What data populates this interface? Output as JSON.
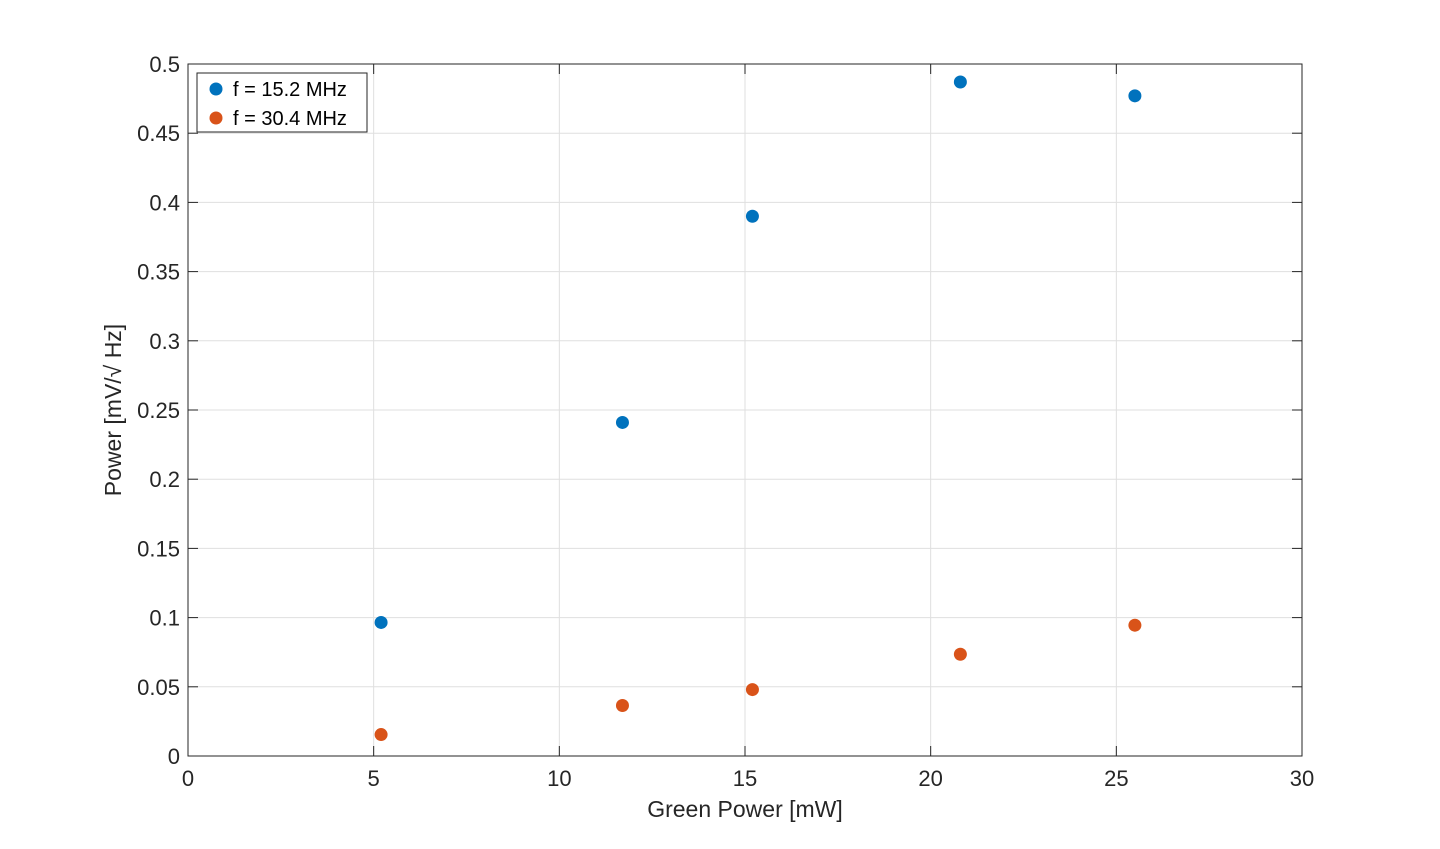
{
  "chart_data": {
    "type": "scatter",
    "title": "",
    "xlabel": "Green Power [mW]",
    "ylabel": "Power [mV/√ Hz]",
    "xlim": [
      0,
      30
    ],
    "ylim": [
      0,
      0.5
    ],
    "xticks": [
      "0",
      "5",
      "10",
      "15",
      "20",
      "25",
      "30"
    ],
    "yticks": [
      "0",
      "0.05",
      "0.1",
      "0.15",
      "0.2",
      "0.25",
      "0.3",
      "0.35",
      "0.4",
      "0.45",
      "0.5"
    ],
    "grid": true,
    "legend_position": "top-left",
    "series": [
      {
        "name": "f = 15.2 MHz",
        "color": "#0072BD",
        "x": [
          5.2,
          11.7,
          15.2,
          20.8,
          25.5
        ],
        "y": [
          0.0965,
          0.241,
          0.39,
          0.487,
          0.477
        ]
      },
      {
        "name": "f = 30.4 MHz",
        "color": "#D95319",
        "x": [
          5.2,
          11.7,
          15.2,
          20.8,
          25.5
        ],
        "y": [
          0.0155,
          0.0365,
          0.048,
          0.0735,
          0.0945
        ]
      }
    ]
  }
}
